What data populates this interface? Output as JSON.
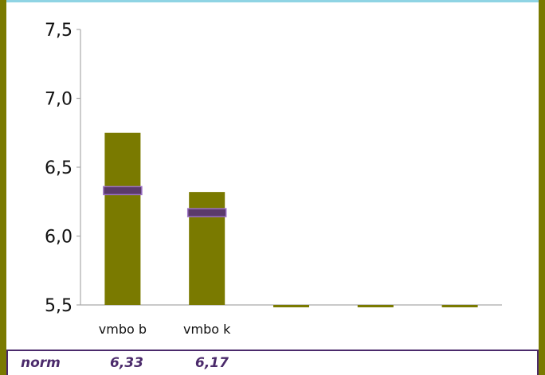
{
  "chart_data": {
    "type": "bar",
    "categories": [
      "vmbo b",
      "vmbo k",
      "",
      "",
      ""
    ],
    "values": [
      6.75,
      6.32,
      5.49,
      5.49,
      5.49
    ],
    "markers": [
      6.33,
      6.17,
      null,
      null,
      null
    ],
    "ylim": [
      5.5,
      7.5
    ],
    "yticks": [
      "5,5",
      "6,0",
      "6,5",
      "7,0",
      "7,5"
    ],
    "ytick_values": [
      5.5,
      6.0,
      6.5,
      7.0,
      7.5
    ],
    "bar_color": "#7a7a00",
    "marker_color": "#5b3a6b",
    "grid": false
  },
  "norm_row": {
    "label": "norm",
    "values": [
      "6,33",
      "6,17"
    ]
  },
  "colors": {
    "frame": "#7a7a00",
    "top_border": "#8fd4e4",
    "norm_text": "#4b2a6b"
  }
}
